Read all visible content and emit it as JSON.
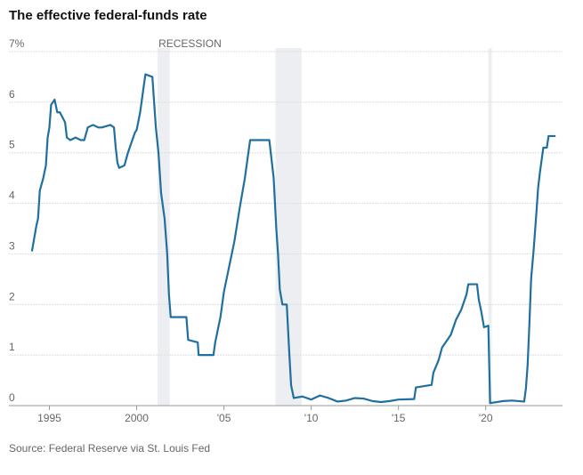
{
  "chart_data": {
    "type": "line",
    "title": "The effective federal-funds rate",
    "source": "Source: Federal Reserve via St. Louis Fed",
    "annotation": "RECESSION",
    "recessions": [
      [
        2001.2,
        2001.9
      ],
      [
        2007.95,
        2009.45
      ],
      [
        2020.15,
        2020.35
      ]
    ],
    "recession_color": "#eceef1",
    "xlim": [
      1993.7,
      2024.4
    ],
    "ylim": [
      0,
      7
    ],
    "xticks": [
      1995,
      2000,
      {
        "value": 2005,
        "label": "'05"
      },
      {
        "value": 2010,
        "label": "'10"
      },
      {
        "value": 2015,
        "label": "'15"
      },
      {
        "value": 2020,
        "label": "'20"
      }
    ],
    "yticks": [
      0,
      1,
      2,
      3,
      4,
      5,
      6,
      {
        "value": 7,
        "label": "7%"
      }
    ],
    "grid": true,
    "x": [
      1994.0,
      1994.1,
      1994.25,
      1994.35,
      1994.45,
      1994.65,
      1994.8,
      1994.9,
      1995.0,
      1995.1,
      1995.3,
      1995.45,
      1995.6,
      1995.75,
      1995.9,
      1996.0,
      1996.2,
      1996.5,
      1996.8,
      1997.0,
      1997.2,
      1997.5,
      1997.8,
      1998.0,
      1998.5,
      1998.7,
      1998.8,
      1998.9,
      1999.0,
      1999.3,
      1999.5,
      1999.7,
      1999.9,
      2000.0,
      2000.2,
      2000.4,
      2000.5,
      2000.9,
      2001.0,
      2001.1,
      2001.25,
      2001.4,
      2001.6,
      2001.75,
      2001.85,
      2001.95,
      2002.5,
      2002.85,
      2002.95,
      2003.5,
      2003.55,
      2004.4,
      2004.5,
      2004.8,
      2005.0,
      2005.3,
      2005.6,
      2005.9,
      2006.2,
      2006.5,
      2007.6,
      2007.7,
      2007.85,
      2008.0,
      2008.1,
      2008.2,
      2008.35,
      2008.6,
      2008.75,
      2008.85,
      2009.0,
      2009.5,
      2010.0,
      2010.5,
      2011.0,
      2011.5,
      2012.0,
      2012.5,
      2013.0,
      2013.5,
      2014.0,
      2014.5,
      2015.0,
      2015.9,
      2016.0,
      2016.9,
      2017.0,
      2017.3,
      2017.5,
      2018.0,
      2018.3,
      2018.6,
      2018.9,
      2019.0,
      2019.5,
      2019.6,
      2019.75,
      2019.9,
      2020.15,
      2020.25,
      2021.0,
      2021.5,
      2022.2,
      2022.3,
      2022.4,
      2022.5,
      2022.6,
      2022.75,
      2022.9,
      2023.0,
      2023.1,
      2023.3,
      2023.5,
      2023.6,
      2024.0
    ],
    "series": [
      {
        "name": "Effective federal-funds rate",
        "color": "#1f6f9f",
        "values": [
          3.05,
          3.25,
          3.55,
          3.7,
          4.25,
          4.5,
          4.75,
          5.3,
          5.5,
          5.95,
          6.05,
          5.8,
          5.8,
          5.7,
          5.6,
          5.3,
          5.25,
          5.3,
          5.25,
          5.25,
          5.5,
          5.55,
          5.5,
          5.5,
          5.55,
          5.5,
          5.1,
          4.8,
          4.7,
          4.75,
          5.0,
          5.2,
          5.4,
          5.45,
          5.8,
          6.3,
          6.55,
          6.5,
          6.0,
          5.5,
          5.0,
          4.2,
          3.7,
          3.0,
          2.2,
          1.75,
          1.75,
          1.75,
          1.3,
          1.25,
          1.0,
          1.0,
          1.25,
          1.75,
          2.25,
          2.75,
          3.25,
          3.9,
          4.5,
          5.25,
          5.25,
          4.95,
          4.5,
          3.5,
          3.0,
          2.3,
          2.0,
          2.0,
          1.0,
          0.4,
          0.15,
          0.18,
          0.12,
          0.2,
          0.15,
          0.08,
          0.1,
          0.15,
          0.14,
          0.09,
          0.07,
          0.09,
          0.12,
          0.13,
          0.36,
          0.41,
          0.65,
          0.9,
          1.15,
          1.4,
          1.7,
          1.9,
          2.2,
          2.4,
          2.4,
          2.1,
          1.85,
          1.55,
          1.58,
          0.05,
          0.09,
          0.1,
          0.08,
          0.33,
          0.8,
          1.6,
          2.5,
          3.1,
          3.8,
          4.3,
          4.6,
          5.1,
          5.1,
          5.33,
          5.33
        ]
      }
    ]
  }
}
